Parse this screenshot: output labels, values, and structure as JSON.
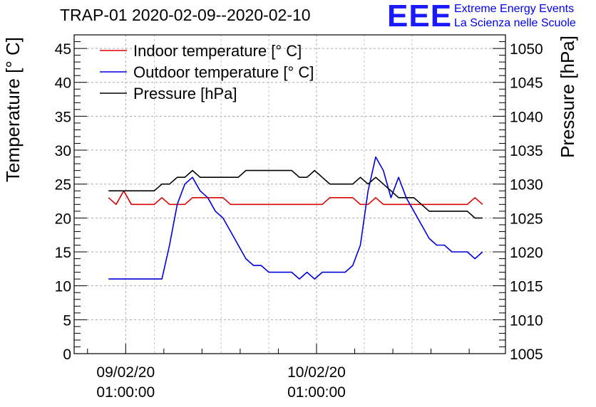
{
  "header": {
    "title": "TRAP-01 2020-02-09--2020-02-10",
    "logo_mark": "EEE",
    "logo_line1": "Extreme Energy Events",
    "logo_line2": "La Scienza nelle Scuole"
  },
  "chart_data": {
    "type": "line",
    "title": "TRAP-01 2020-02-09--2020-02-10",
    "xlabel": "",
    "ylabel": "Temperature [° C]",
    "y2label": "Pressure [hPa]",
    "ylim": [
      0,
      47
    ],
    "y2lim": [
      1005,
      1052
    ],
    "yticks": [
      0,
      5,
      10,
      15,
      20,
      25,
      30,
      35,
      40,
      45
    ],
    "y2ticks": [
      1005,
      1010,
      1015,
      1020,
      1025,
      1030,
      1035,
      1040,
      1045,
      1050
    ],
    "xlim": [
      -2.7,
      19.9
    ],
    "x_unit": "hours since 2020-02-09 01:00:00",
    "xticks": [
      {
        "x": 0,
        "label_date": "09/02/20",
        "label_time": "01:00:00"
      },
      {
        "x": 10,
        "label_date": "10/02/20",
        "label_time": "01:00:00"
      }
    ],
    "grid": true,
    "legend_position": "top-left",
    "series": [
      {
        "name": "Indoor temperature [° C]",
        "axis": "left",
        "color": "#dd0000",
        "x": [
          -0.9,
          -0.5,
          -0.1,
          0.3,
          0.7,
          1.1,
          1.5,
          1.9,
          2.3,
          2.7,
          3.1,
          3.5,
          3.9,
          4.3,
          4.7,
          5.1,
          5.5,
          5.9,
          6.3,
          6.7,
          7.1,
          7.5,
          7.9,
          8.3,
          8.7,
          9.1,
          9.5,
          9.9,
          10.3,
          10.7,
          11.1,
          11.5,
          11.9,
          12.3,
          12.7,
          13.1,
          13.5,
          13.9,
          14.3,
          14.7,
          15.1,
          15.5,
          15.9,
          16.3,
          16.7,
          17.1,
          17.5,
          17.9,
          18.3,
          18.7
        ],
        "values": [
          23,
          22,
          24,
          22,
          22,
          22,
          22,
          23,
          22,
          22,
          22,
          23,
          23,
          23,
          23,
          23,
          22,
          22,
          22,
          22,
          22,
          22,
          22,
          22,
          22,
          22,
          22,
          22,
          22,
          23,
          23,
          23,
          23,
          22,
          22,
          23,
          22,
          22,
          22,
          22,
          22,
          22,
          22,
          22,
          22,
          22,
          22,
          22,
          23,
          22
        ]
      },
      {
        "name": "Outdoor temperature [° C]",
        "axis": "left",
        "color": "#0000dd",
        "x": [
          -0.9,
          -0.5,
          -0.1,
          0.3,
          0.7,
          1.1,
          1.5,
          1.9,
          2.3,
          2.7,
          3.1,
          3.5,
          3.9,
          4.3,
          4.7,
          5.1,
          5.5,
          5.9,
          6.3,
          6.7,
          7.1,
          7.5,
          7.9,
          8.3,
          8.7,
          9.1,
          9.5,
          9.9,
          10.3,
          10.7,
          11.1,
          11.5,
          11.9,
          12.3,
          12.7,
          13.1,
          13.5,
          13.9,
          14.3,
          14.7,
          15.1,
          15.5,
          15.9,
          16.3,
          16.7,
          17.1,
          17.5,
          17.9,
          18.3,
          18.7
        ],
        "values": [
          11,
          11,
          11,
          11,
          11,
          11,
          11,
          11,
          16,
          22,
          25,
          26,
          24,
          23,
          21,
          20,
          18,
          16,
          14,
          13,
          13,
          12,
          12,
          12,
          12,
          11,
          12,
          11,
          12,
          12,
          12,
          12,
          13,
          16,
          24,
          29,
          27,
          23,
          26,
          23,
          21,
          19,
          17,
          16,
          16,
          15,
          15,
          15,
          14,
          15
        ]
      },
      {
        "name": "Pressure [hPa]",
        "axis": "right",
        "color": "#000000",
        "x": [
          -0.9,
          -0.5,
          -0.1,
          0.3,
          0.7,
          1.1,
          1.5,
          1.9,
          2.3,
          2.7,
          3.1,
          3.5,
          3.9,
          4.3,
          4.7,
          5.1,
          5.5,
          5.9,
          6.3,
          6.7,
          7.1,
          7.5,
          7.9,
          8.3,
          8.7,
          9.1,
          9.5,
          9.9,
          10.3,
          10.7,
          11.1,
          11.5,
          11.9,
          12.3,
          12.7,
          13.1,
          13.5,
          13.9,
          14.3,
          14.7,
          15.1,
          15.5,
          15.9,
          16.3,
          16.7,
          17.1,
          17.5,
          17.9,
          18.3,
          18.7
        ],
        "values": [
          1029,
          1029,
          1029,
          1029,
          1029,
          1029,
          1029,
          1030,
          1030,
          1031,
          1031,
          1032,
          1031,
          1031,
          1031,
          1031,
          1031,
          1031,
          1032,
          1032,
          1032,
          1032,
          1032,
          1032,
          1032,
          1031,
          1031,
          1032,
          1031,
          1030,
          1030,
          1030,
          1030,
          1031,
          1030,
          1031,
          1030,
          1029,
          1028,
          1028,
          1028,
          1027,
          1026,
          1026,
          1026,
          1026,
          1026,
          1026,
          1025,
          1025
        ]
      }
    ]
  }
}
